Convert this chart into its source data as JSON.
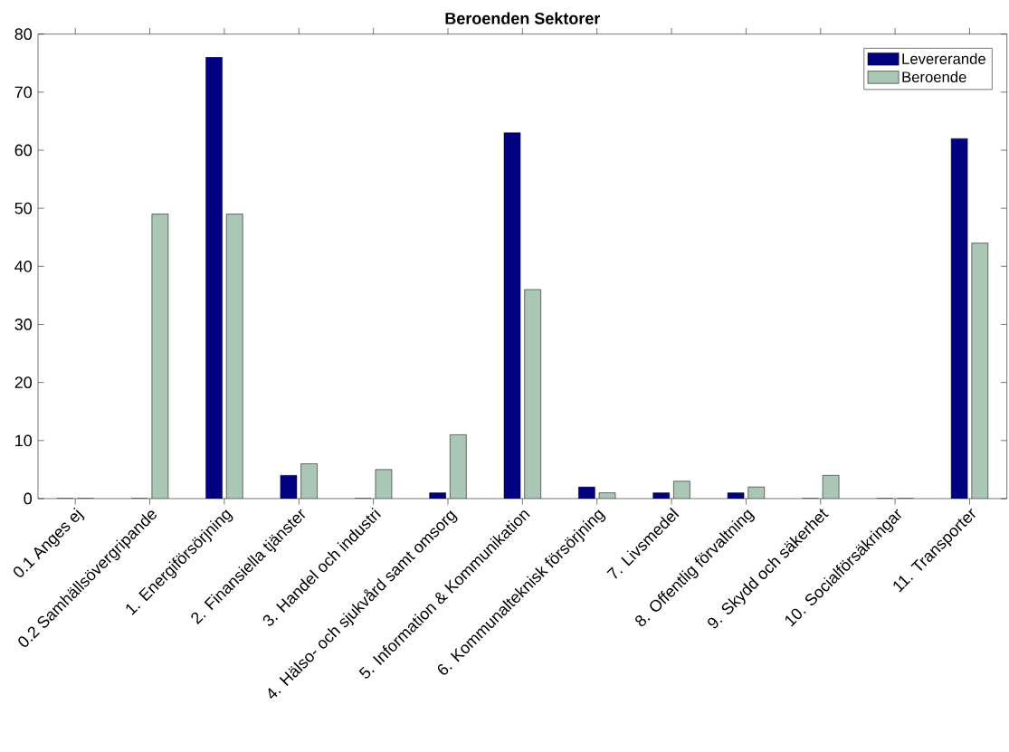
{
  "chart_data": {
    "type": "bar",
    "title": "Beroenden Sektorer",
    "categories": [
      "0.1 Anges ej",
      "0.2 Samhällsövergripande",
      "1. Energiförsörjning",
      "2. Finansiella tjänster",
      "3. Handel och industri",
      "4. Hälso- och sjukvård samt omsorg",
      "5. Information & Kommunikation",
      "6. Kommunalteknisk försörjning",
      "7. Livsmedel",
      "8. Offentlig förvaltning",
      "9. Skydd och säkerhet",
      "10. Socialförsäkringar",
      "11. Transporter"
    ],
    "series": [
      {
        "name": "Levererande",
        "color": "#000080",
        "values": [
          0,
          0,
          76,
          4,
          0,
          1,
          63,
          2,
          1,
          1,
          0,
          0,
          62
        ]
      },
      {
        "name": "Beroende",
        "color": "#aac7b6",
        "values": [
          0,
          49,
          49,
          6,
          5,
          11,
          36,
          1,
          3,
          2,
          4,
          0,
          44
        ]
      }
    ],
    "ylim": [
      0,
      80
    ],
    "yticks": [
      0,
      10,
      20,
      30,
      40,
      50,
      60,
      70,
      80
    ],
    "grid": false,
    "legend": "top right"
  }
}
